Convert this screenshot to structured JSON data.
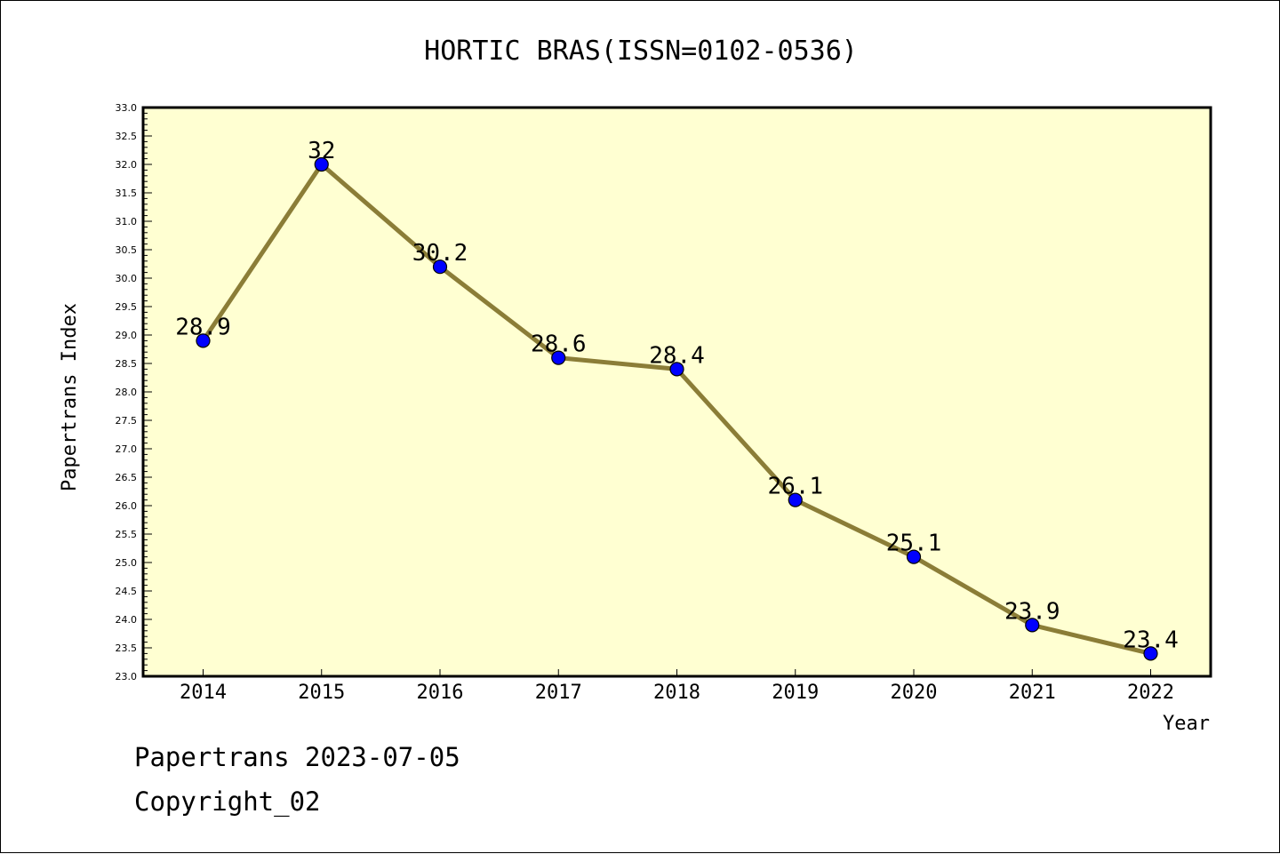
{
  "chart_data": {
    "type": "line",
    "title": "HORTIC BRAS(ISSN=0102-0536)",
    "xlabel": "Year",
    "ylabel": "Papertrans Index",
    "categories": [
      "2014",
      "2015",
      "2016",
      "2017",
      "2018",
      "2019",
      "2020",
      "2021",
      "2022"
    ],
    "values": [
      28.9,
      32,
      30.2,
      28.6,
      28.4,
      26.1,
      25.1,
      23.9,
      23.4
    ],
    "data_labels": [
      "28.9",
      "32",
      "30.2",
      "28.6",
      "28.4",
      "26.1",
      "25.1",
      "23.9",
      "23.4"
    ],
    "ylim": [
      23.0,
      33.0
    ],
    "ytick_labels": [
      "23.0",
      "23.5",
      "24.0",
      "24.5",
      "25.0",
      "25.5",
      "26.0",
      "26.5",
      "27.0",
      "27.5",
      "28.0",
      "28.5",
      "29.0",
      "29.5",
      "30.0",
      "30.5",
      "31.0",
      "31.5",
      "32.0",
      "32.5",
      "33.0"
    ],
    "grid": false,
    "colors": {
      "plot_background": "#ffffd2",
      "line": "#8b7d37",
      "marker": "#0000ff"
    }
  },
  "footer": {
    "line1": "Papertrans 2023-07-05",
    "line2": "Copyright_02"
  }
}
